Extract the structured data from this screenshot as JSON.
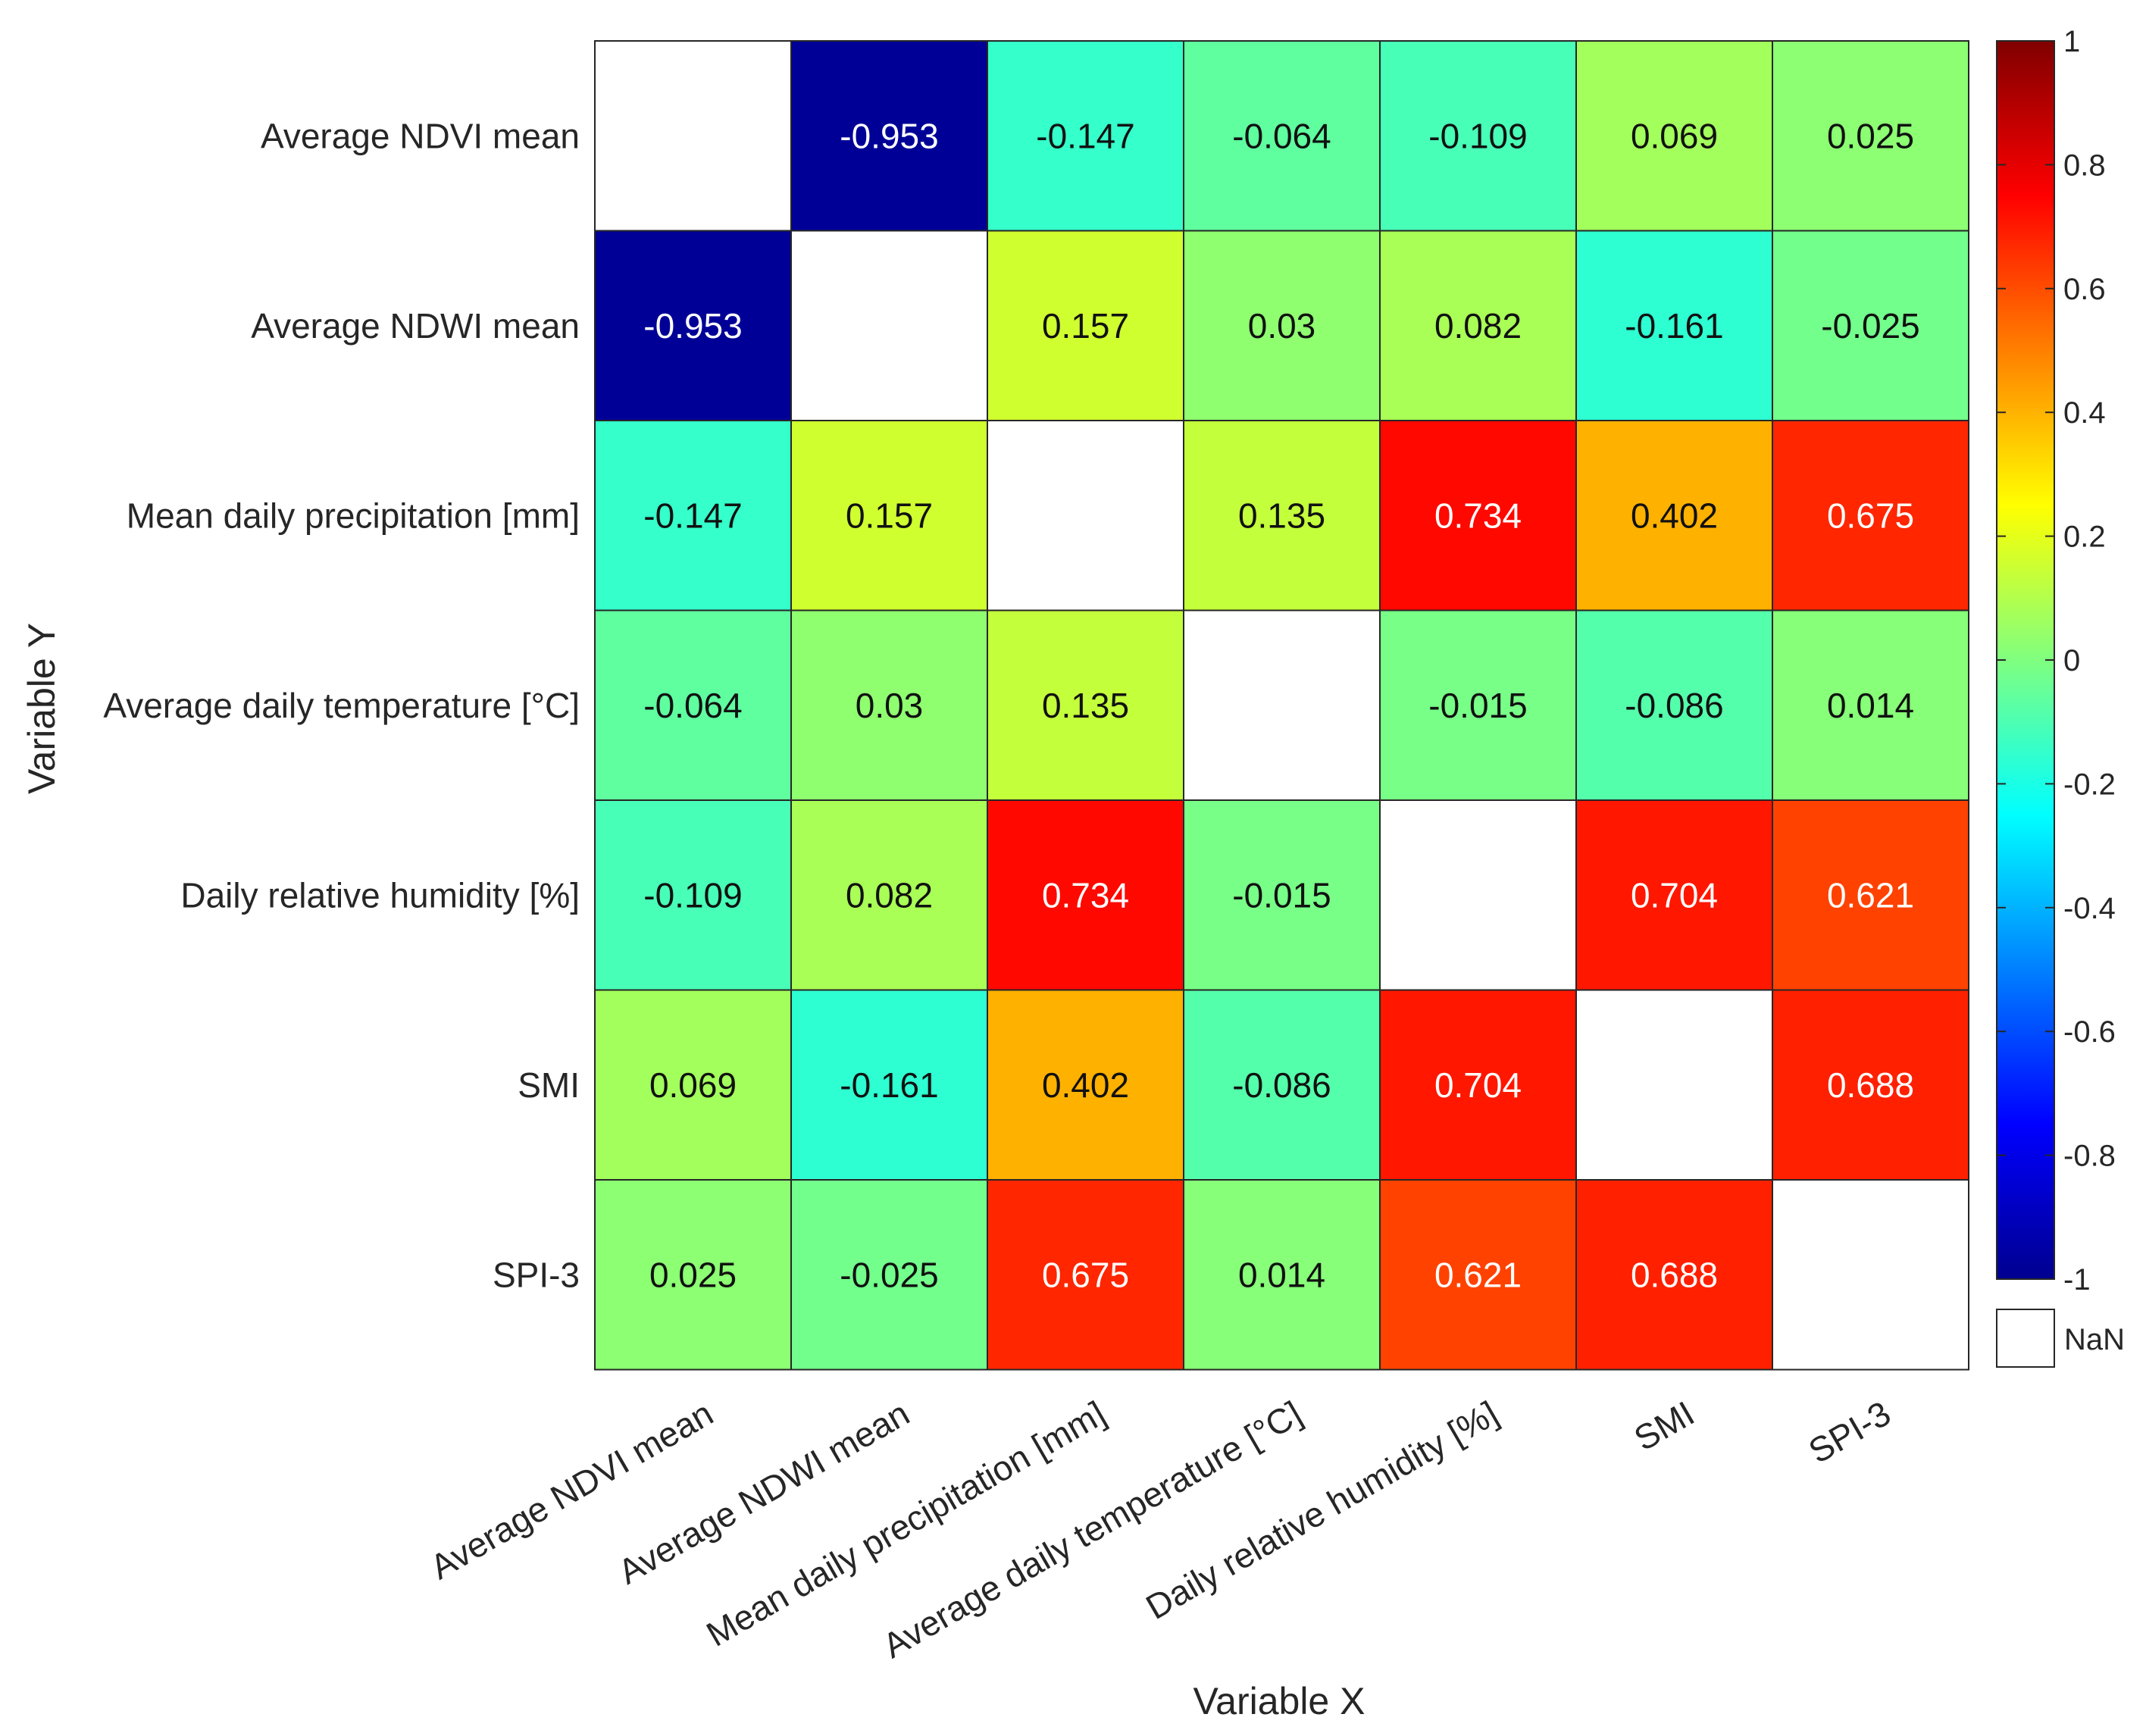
{
  "chart_data": {
    "type": "heatmap",
    "title": "",
    "xlabel": "Variable X",
    "ylabel": "Variable Y",
    "x_categories": [
      "Average NDVI mean",
      "Average NDWI mean",
      "Mean daily precipitation [mm]",
      "Average daily temperature [°C]",
      "Daily relative humidity [%]",
      "SMI",
      "SPI-3"
    ],
    "y_categories": [
      "Average NDVI mean",
      "Average NDWI mean",
      "Mean daily precipitation [mm]",
      "Average daily temperature [°C]",
      "Daily relative humidity [%]",
      "SMI",
      "SPI-3"
    ],
    "values": [
      [
        null,
        -0.953,
        -0.147,
        -0.064,
        -0.109,
        0.069,
        0.025
      ],
      [
        -0.953,
        null,
        0.157,
        0.03,
        0.082,
        -0.161,
        -0.025
      ],
      [
        -0.147,
        0.157,
        null,
        0.135,
        0.734,
        0.402,
        0.675
      ],
      [
        -0.064,
        0.03,
        0.135,
        null,
        -0.015,
        -0.086,
        0.014
      ],
      [
        -0.109,
        0.082,
        0.734,
        -0.015,
        null,
        0.704,
        0.621
      ],
      [
        0.069,
        -0.161,
        0.402,
        -0.086,
        0.704,
        null,
        0.688
      ],
      [
        0.025,
        -0.025,
        0.675,
        0.014,
        0.621,
        0.688,
        null
      ]
    ],
    "colorscale": "jet",
    "color_range": [
      -1,
      1
    ],
    "colorbar_ticks": [
      "1",
      "0.8",
      "0.6",
      "0.4",
      "0.2",
      "0",
      "-0.2",
      "-0.4",
      "-0.6",
      "-0.8",
      "-1"
    ],
    "missing_label": "NaN",
    "grid": true
  }
}
